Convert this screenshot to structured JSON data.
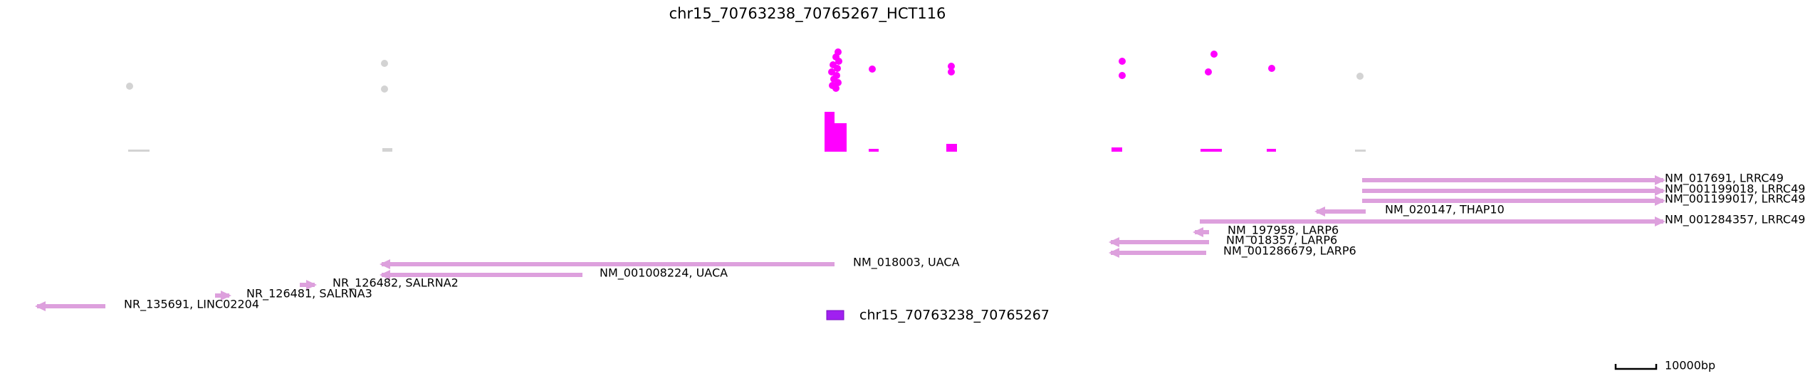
{
  "title": "chr15_70763238_70765267_HCT116",
  "colors": {
    "highlight": "#ff00ff",
    "background_mark": "#d3d3d3",
    "gene": "#dda0dd",
    "region": "#a020f0",
    "text": "#000000"
  },
  "genes": [
    {
      "label": "NM_017691, LRRC49",
      "strand": "+"
    },
    {
      "label": "NM_001199018, LRRC49",
      "strand": "+"
    },
    {
      "label": "NM_001199017, LRRC49",
      "strand": "+"
    },
    {
      "label": "NM_020147, THAP10",
      "strand": "-"
    },
    {
      "label": "NM_001284357, LRRC49",
      "strand": "+"
    },
    {
      "label": "NM_197958, LARP6",
      "strand": "-"
    },
    {
      "label": "NM_018357, LARP6",
      "strand": "-"
    },
    {
      "label": "NM_001286679, LARP6",
      "strand": "-"
    },
    {
      "label": "NM_018003, UACA",
      "strand": "-"
    },
    {
      "label": "NM_001008224, UACA",
      "strand": "-"
    },
    {
      "label": "NR_126482, SALRNA2",
      "strand": "+"
    },
    {
      "label": "NR_126481, SALRNA3",
      "strand": "+"
    },
    {
      "label": "NR_135691, LINC02204",
      "strand": "-"
    }
  ],
  "region": {
    "label": "chr15_70763238_70765267"
  },
  "scale_bar": {
    "label": "10000bp"
  }
}
